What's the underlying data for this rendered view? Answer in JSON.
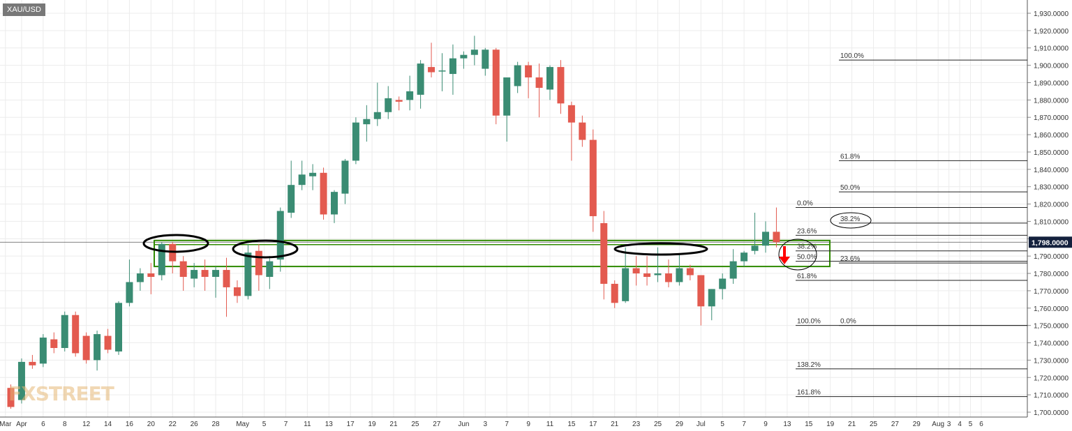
{
  "header": {
    "symbol": "XAU/USD"
  },
  "watermark": "FXSTREET",
  "chart_data": {
    "type": "candlestick",
    "ylim": [
      1700,
      1935
    ],
    "y_ticks": [
      "1,700.0000",
      "1,710.0000",
      "1,720.0000",
      "1,730.0000",
      "1,740.0000",
      "1,750.0000",
      "1,760.0000",
      "1,770.0000",
      "1,780.0000",
      "1,790.0000",
      "1,800.0000",
      "1,810.0000",
      "1,820.0000",
      "1,830.0000",
      "1,840.0000",
      "1,850.0000",
      "1,860.0000",
      "1,870.0000",
      "1,880.0000",
      "1,890.0000",
      "1,900.0000",
      "1,910.0000",
      "1,920.0000",
      "1,930.0000"
    ],
    "x_ticks": [
      {
        "i": -0.5,
        "label": "Mar"
      },
      {
        "i": 1,
        "label": "Apr"
      },
      {
        "i": 3,
        "label": "6"
      },
      {
        "i": 5,
        "label": "8"
      },
      {
        "i": 7,
        "label": "12"
      },
      {
        "i": 9,
        "label": "14"
      },
      {
        "i": 11,
        "label": "16"
      },
      {
        "i": 13,
        "label": "20"
      },
      {
        "i": 15,
        "label": "22"
      },
      {
        "i": 17,
        "label": "26"
      },
      {
        "i": 19,
        "label": "28"
      },
      {
        "i": 21.5,
        "label": "May"
      },
      {
        "i": 23.5,
        "label": "5"
      },
      {
        "i": 25.5,
        "label": "7"
      },
      {
        "i": 27.5,
        "label": "11"
      },
      {
        "i": 29.5,
        "label": "13"
      },
      {
        "i": 31.5,
        "label": "17"
      },
      {
        "i": 33.5,
        "label": "19"
      },
      {
        "i": 35.5,
        "label": "21"
      },
      {
        "i": 37.5,
        "label": "25"
      },
      {
        "i": 39.5,
        "label": "27"
      },
      {
        "i": 42,
        "label": "Jun"
      },
      {
        "i": 44,
        "label": "3"
      },
      {
        "i": 46,
        "label": "7"
      },
      {
        "i": 48,
        "label": "9"
      },
      {
        "i": 50,
        "label": "11"
      },
      {
        "i": 52,
        "label": "15"
      },
      {
        "i": 54,
        "label": "17"
      },
      {
        "i": 56,
        "label": "21"
      },
      {
        "i": 58,
        "label": "23"
      },
      {
        "i": 60,
        "label": "25"
      },
      {
        "i": 62,
        "label": "29"
      },
      {
        "i": 64,
        "label": "Jul"
      },
      {
        "i": 66,
        "label": "5"
      },
      {
        "i": 68,
        "label": "7"
      },
      {
        "i": 70,
        "label": "9"
      },
      {
        "i": 72,
        "label": "13"
      },
      {
        "i": 74,
        "label": "15"
      },
      {
        "i": 76,
        "label": "19"
      },
      {
        "i": 78,
        "label": "21"
      },
      {
        "i": 80,
        "label": "25"
      },
      {
        "i": 82,
        "label": "27"
      },
      {
        "i": 84,
        "label": "29"
      },
      {
        "i": 86,
        "label": "Aug"
      },
      {
        "i": 87,
        "label": "3"
      },
      {
        "i": 88,
        "label": "4"
      },
      {
        "i": 89,
        "label": "5"
      },
      {
        "i": 90,
        "label": "6"
      }
    ],
    "candles": [
      {
        "o": 1714,
        "h": 1716,
        "l": 1702,
        "c": 1703
      },
      {
        "o": 1707,
        "h": 1731,
        "l": 1705,
        "c": 1729
      },
      {
        "o": 1729,
        "h": 1733,
        "l": 1725,
        "c": 1727
      },
      {
        "o": 1728,
        "h": 1745,
        "l": 1726,
        "c": 1743
      },
      {
        "o": 1742,
        "h": 1746,
        "l": 1734,
        "c": 1737
      },
      {
        "o": 1737,
        "h": 1758,
        "l": 1735,
        "c": 1756
      },
      {
        "o": 1756,
        "h": 1758,
        "l": 1732,
        "c": 1734
      },
      {
        "o": 1744,
        "h": 1746,
        "l": 1728,
        "c": 1730
      },
      {
        "o": 1730,
        "h": 1747,
        "l": 1724,
        "c": 1745
      },
      {
        "o": 1744,
        "h": 1748,
        "l": 1734,
        "c": 1736
      },
      {
        "o": 1735,
        "h": 1764,
        "l": 1733,
        "c": 1763
      },
      {
        "o": 1763,
        "h": 1788,
        "l": 1761,
        "c": 1775
      },
      {
        "o": 1775,
        "h": 1783,
        "l": 1770,
        "c": 1780
      },
      {
        "o": 1780,
        "h": 1786,
        "l": 1768,
        "c": 1778
      },
      {
        "o": 1779,
        "h": 1798,
        "l": 1776,
        "c": 1797
      },
      {
        "o": 1797,
        "h": 1798,
        "l": 1780,
        "c": 1787
      },
      {
        "o": 1787,
        "h": 1790,
        "l": 1770,
        "c": 1778
      },
      {
        "o": 1777,
        "h": 1786,
        "l": 1772,
        "c": 1782
      },
      {
        "o": 1782,
        "h": 1788,
        "l": 1770,
        "c": 1778
      },
      {
        "o": 1778,
        "h": 1784,
        "l": 1766,
        "c": 1782
      },
      {
        "o": 1782,
        "h": 1789,
        "l": 1755,
        "c": 1772
      },
      {
        "o": 1772,
        "h": 1776,
        "l": 1763,
        "c": 1767
      },
      {
        "o": 1767,
        "h": 1797,
        "l": 1765,
        "c": 1792
      },
      {
        "o": 1793,
        "h": 1797,
        "l": 1770,
        "c": 1779
      },
      {
        "o": 1778,
        "h": 1790,
        "l": 1771,
        "c": 1787
      },
      {
        "o": 1788,
        "h": 1818,
        "l": 1781,
        "c": 1816
      },
      {
        "o": 1815,
        "h": 1845,
        "l": 1812,
        "c": 1831
      },
      {
        "o": 1831,
        "h": 1845,
        "l": 1828,
        "c": 1837
      },
      {
        "o": 1836,
        "h": 1843,
        "l": 1828,
        "c": 1838
      },
      {
        "o": 1838,
        "h": 1841,
        "l": 1811,
        "c": 1814
      },
      {
        "o": 1814,
        "h": 1828,
        "l": 1809,
        "c": 1827
      },
      {
        "o": 1826,
        "h": 1846,
        "l": 1820,
        "c": 1845
      },
      {
        "o": 1845,
        "h": 1870,
        "l": 1843,
        "c": 1867
      },
      {
        "o": 1866,
        "h": 1877,
        "l": 1856,
        "c": 1869
      },
      {
        "o": 1869,
        "h": 1890,
        "l": 1865,
        "c": 1873
      },
      {
        "o": 1873,
        "h": 1888,
        "l": 1869,
        "c": 1881
      },
      {
        "o": 1880,
        "h": 1882,
        "l": 1874,
        "c": 1879
      },
      {
        "o": 1880,
        "h": 1894,
        "l": 1874,
        "c": 1885
      },
      {
        "o": 1883,
        "h": 1903,
        "l": 1875,
        "c": 1901
      },
      {
        "o": 1899,
        "h": 1913,
        "l": 1893,
        "c": 1896
      },
      {
        "o": 1897,
        "h": 1907,
        "l": 1885,
        "c": 1897
      },
      {
        "o": 1895,
        "h": 1912,
        "l": 1883,
        "c": 1904
      },
      {
        "o": 1904,
        "h": 1908,
        "l": 1898,
        "c": 1906
      },
      {
        "o": 1906,
        "h": 1917,
        "l": 1900,
        "c": 1909
      },
      {
        "o": 1898,
        "h": 1910,
        "l": 1894,
        "c": 1909
      },
      {
        "o": 1909,
        "h": 1910,
        "l": 1866,
        "c": 1871
      },
      {
        "o": 1871,
        "h": 1892,
        "l": 1856,
        "c": 1893
      },
      {
        "o": 1888,
        "h": 1902,
        "l": 1884,
        "c": 1900
      },
      {
        "o": 1900,
        "h": 1902,
        "l": 1881,
        "c": 1893
      },
      {
        "o": 1893,
        "h": 1901,
        "l": 1870,
        "c": 1887
      },
      {
        "o": 1886,
        "h": 1900,
        "l": 1880,
        "c": 1899
      },
      {
        "o": 1899,
        "h": 1903,
        "l": 1872,
        "c": 1878
      },
      {
        "o": 1877,
        "h": 1879,
        "l": 1845,
        "c": 1867
      },
      {
        "o": 1867,
        "h": 1871,
        "l": 1853,
        "c": 1857
      },
      {
        "o": 1857,
        "h": 1863,
        "l": 1804,
        "c": 1813
      },
      {
        "o": 1809,
        "h": 1816,
        "l": 1765,
        "c": 1774
      },
      {
        "o": 1774,
        "h": 1776,
        "l": 1760,
        "c": 1763
      },
      {
        "o": 1764,
        "h": 1795,
        "l": 1763,
        "c": 1783
      },
      {
        "o": 1783,
        "h": 1790,
        "l": 1773,
        "c": 1780
      },
      {
        "o": 1780,
        "h": 1790,
        "l": 1773,
        "c": 1778
      },
      {
        "o": 1779,
        "h": 1795,
        "l": 1775,
        "c": 1780
      },
      {
        "o": 1780,
        "h": 1788,
        "l": 1772,
        "c": 1775
      },
      {
        "o": 1775,
        "h": 1791,
        "l": 1773,
        "c": 1783
      },
      {
        "o": 1783,
        "h": 1785,
        "l": 1776,
        "c": 1779
      },
      {
        "o": 1779,
        "h": 1779,
        "l": 1750,
        "c": 1761
      },
      {
        "o": 1761,
        "h": 1771,
        "l": 1753,
        "c": 1771
      },
      {
        "o": 1771,
        "h": 1780,
        "l": 1765,
        "c": 1777
      },
      {
        "o": 1777,
        "h": 1794,
        "l": 1774,
        "c": 1787
      },
      {
        "o": 1787,
        "h": 1793,
        "l": 1784,
        "c": 1792
      },
      {
        "o": 1793,
        "h": 1815,
        "l": 1791,
        "c": 1796
      },
      {
        "o": 1796,
        "h": 1810,
        "l": 1792,
        "c": 1804
      },
      {
        "o": 1804,
        "h": 1818,
        "l": 1795,
        "c": 1798
      }
    ],
    "current_price": {
      "value": 1798,
      "label": "1,798.0000"
    },
    "fib_left": [
      {
        "y": 1903,
        "label": "100.0%"
      },
      {
        "y": 1845,
        "label": "61.8%"
      },
      {
        "y": 1827,
        "label": "50.0%"
      },
      {
        "y": 1786,
        "label": "23.6%"
      }
    ],
    "fib_right": [
      {
        "y": 1818,
        "label": "0.0%"
      },
      {
        "y": 1809,
        "label": "38.2%"
      },
      {
        "y": 1802,
        "label": "23.6%"
      },
      {
        "y": 1793,
        "label": "38.2%"
      },
      {
        "y": 1787,
        "label": "50.0%"
      },
      {
        "y": 1776,
        "label": "61.8%"
      },
      {
        "y": 1750,
        "label": "100.0%"
      },
      {
        "y": 1750,
        "label": "0.0%"
      },
      {
        "y": 1725,
        "label": "138.2%"
      },
      {
        "y": 1709,
        "label": "161.8%"
      }
    ],
    "support_zone": {
      "y_top": 1799,
      "y_bottom": 1784
    }
  },
  "colors": {
    "bull": "#3a8c73",
    "bear": "#e35a4f",
    "grid": "#ececec",
    "zone": "#2f8a00",
    "arrow": "#ff0000",
    "price_label_bg": "#14213d"
  }
}
